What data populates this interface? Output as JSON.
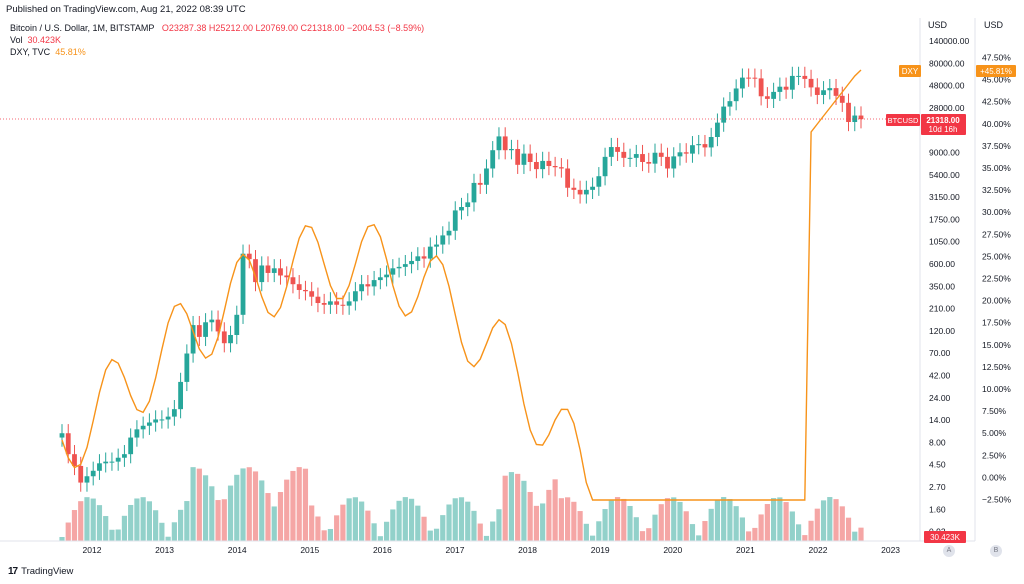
{
  "published": "Published on TradingView.com, Aug 21, 2022 08:39 UTC",
  "legend": {
    "main_symbol": "Bitcoin / U.S. Dollar, 1M, BITSTAMP",
    "ohlc": "O23287.38  H25212.00  L20769.00  C21318.00  −2004.53 (−8.59%)",
    "vol_label": "Vol",
    "vol_value": "30.423K",
    "dxy_label": "DXY, TVC",
    "dxy_value": "45.81%"
  },
  "axis_units": {
    "left": "USD",
    "right": "USD"
  },
  "badges": {
    "dxy_tag": "DXY",
    "dxy_value": "+45.81%",
    "btc_tag": "BTCUSD",
    "btc_price": "21318.00",
    "btc_countdown": "10d 16h",
    "vol_value": "30.423K"
  },
  "footer": {
    "brand": "TradingView",
    "btn_a": "A",
    "btn_b": "B"
  },
  "colors": {
    "up": "#26a69a",
    "down": "#ef5350",
    "vol_up": "#92d1ca",
    "vol_down": "#f5a6a5",
    "dxy": "#f7931a",
    "badge_red": "#f23645"
  },
  "chart_data": {
    "type": "candlestick",
    "price_axis_ticks": [
      "140000.00",
      "80000.00",
      "48000.00",
      "28000.00",
      "16000.00",
      "9000.00",
      "5400.00",
      "3150.00",
      "1750.00",
      "1050.00",
      "600.00",
      "350.00",
      "210.00",
      "120.00",
      "70.00",
      "42.00",
      "24.00",
      "14.00",
      "8.00",
      "4.50",
      "2.70",
      "1.60",
      "0.92"
    ],
    "percent_axis_ticks": [
      "47.50%",
      "45.00%",
      "42.50%",
      "40.00%",
      "37.50%",
      "35.00%",
      "32.50%",
      "30.00%",
      "27.50%",
      "25.00%",
      "22.50%",
      "20.00%",
      "17.50%",
      "15.00%",
      "12.50%",
      "10.00%",
      "7.50%",
      "5.00%",
      "2.50%",
      "0.00%",
      "−2.50%"
    ],
    "x_labels": [
      "2012",
      "2013",
      "2014",
      "2015",
      "2016",
      "2017",
      "2018",
      "2019",
      "2020",
      "2021",
      "2022",
      "2023"
    ],
    "series": [
      {
        "name": "BTCUSD",
        "type": "candles",
        "last": 21318.0,
        "closes": [
          10,
          6,
          4.5,
          3,
          3.5,
          4,
          4.8,
          5,
          5,
          5.5,
          6,
          9,
          11,
          12,
          13,
          14,
          14,
          15,
          18,
          35,
          70,
          140,
          105,
          150,
          160,
          120,
          90,
          110,
          180,
          800,
          700,
          400,
          600,
          500,
          560,
          470,
          450,
          380,
          330,
          320,
          280,
          240,
          230,
          250,
          230,
          225,
          250,
          320,
          380,
          360,
          420,
          450,
          480,
          560,
          580,
          620,
          670,
          750,
          710,
          950,
          1000,
          1250,
          1400,
          2300,
          2500,
          2800,
          4500,
          4300,
          6400,
          10000,
          14000,
          10000,
          10300,
          7000,
          9200,
          7500,
          6300,
          7700,
          6800,
          6600,
          6400,
          4000,
          3800,
          3400,
          3800,
          4100,
          5300,
          8500,
          10800,
          9600,
          8300,
          8300,
          9100,
          7500,
          7200,
          9400,
          8500,
          6400,
          8600,
          9500,
          9200,
          11300,
          11600,
          10700,
          13800,
          19600,
          29000,
          33100,
          45100,
          58800,
          58700,
          57700,
          37300,
          35000,
          41500,
          47100,
          43800,
          61300,
          61300,
          57000,
          46300,
          38500,
          43200,
          45500,
          37700,
          31800,
          19900,
          23300,
          21318
        ]
      },
      {
        "name": "DXY",
        "type": "line",
        "last_pct": 45.81
      },
      {
        "name": "Vol",
        "type": "histogram",
        "last": "30.423K"
      }
    ]
  }
}
